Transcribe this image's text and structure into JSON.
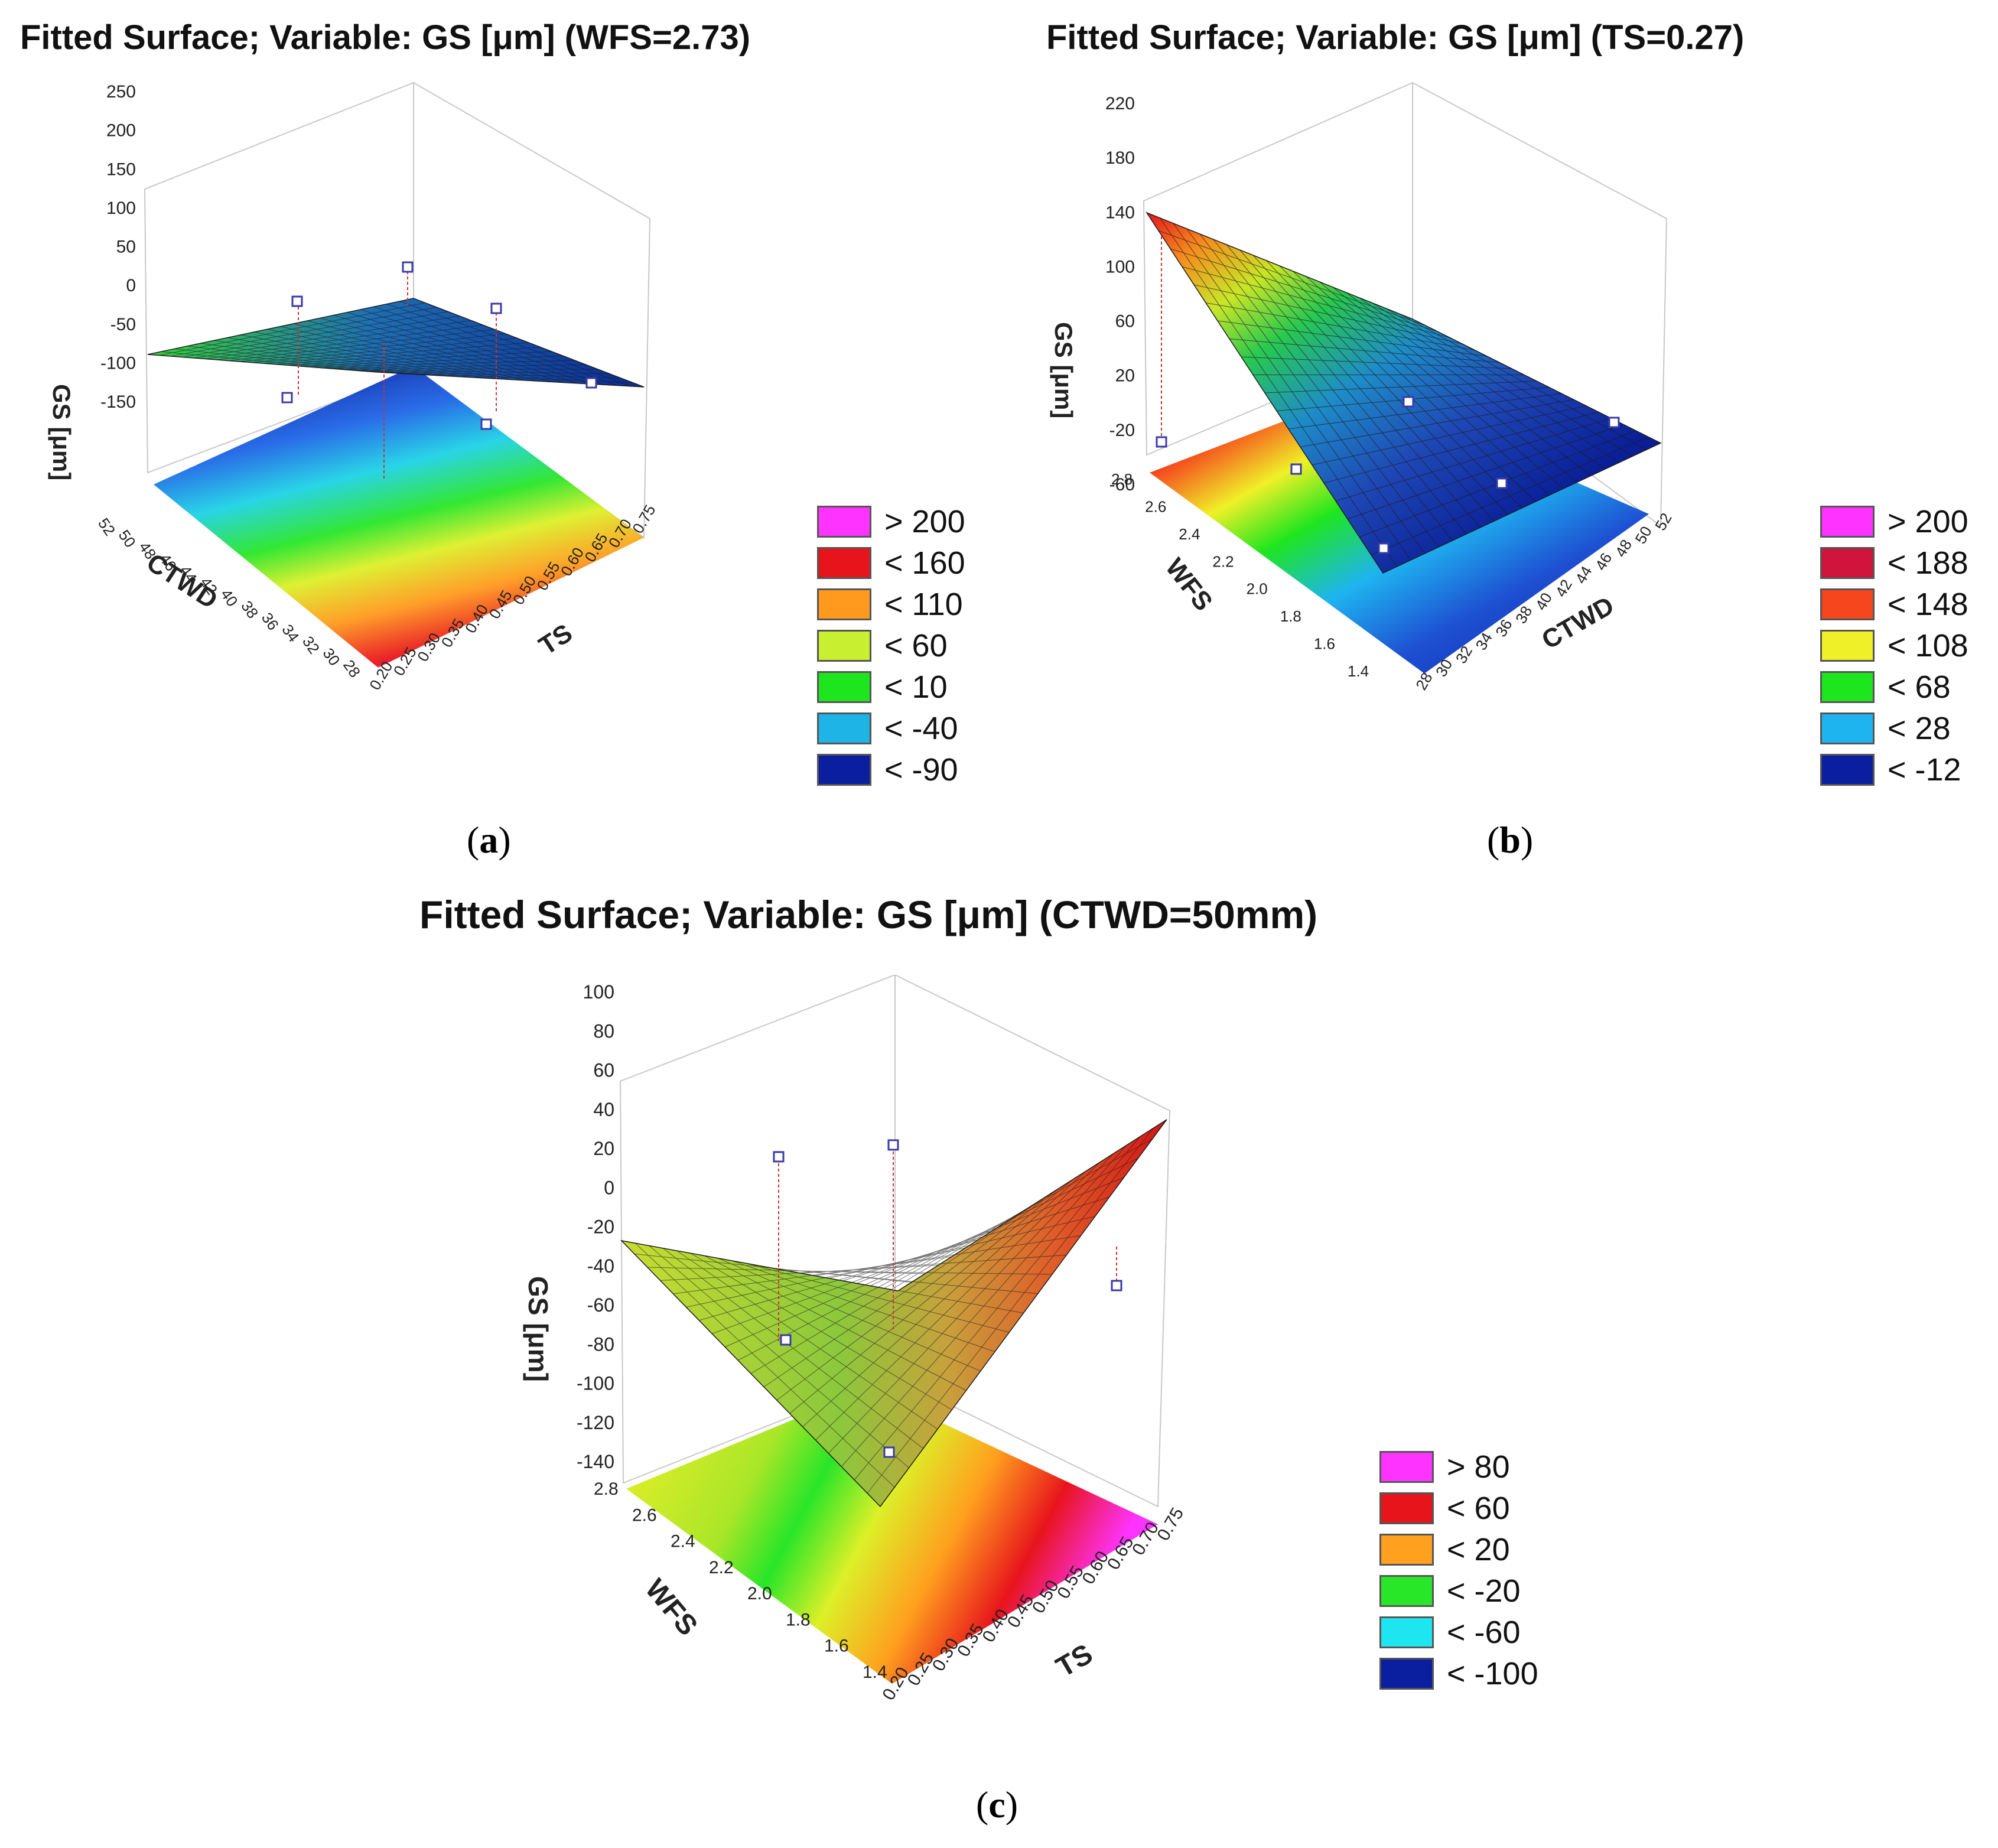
{
  "chart_data": [
    {
      "id": "a",
      "type": "surface3d",
      "title": "Fitted Surface; Variable: GS [μm] (WFS=2.73)",
      "zlabel": "GS [μm]",
      "xlabel": "CTWD",
      "ylabel": "TS",
      "x_ticks": [
        "52",
        "50",
        "48",
        "46",
        "44",
        "42",
        "40",
        "38",
        "36",
        "34",
        "32",
        "30",
        "28"
      ],
      "y_ticks": [
        "0.20",
        "0.25",
        "0.30",
        "0.35",
        "0.40",
        "0.45",
        "0.50",
        "0.55",
        "0.60",
        "0.65",
        "0.70",
        "0.75"
      ],
      "z_ticks": [
        "250",
        "200",
        "150",
        "100",
        "50",
        "0",
        "-50",
        "-100",
        "-150"
      ],
      "zlim": [
        -150,
        250
      ],
      "legend": [
        {
          "label": "> 200",
          "color": "#ff33ff"
        },
        {
          "label": "< 160",
          "color": "#e8141c"
        },
        {
          "label": "< 110",
          "color": "#ff9a1e"
        },
        {
          "label": "< 60",
          "color": "#c8f030"
        },
        {
          "label": "< 10",
          "color": "#1ee61e"
        },
        {
          "label": "< -40",
          "color": "#1eb4e6"
        },
        {
          "label": "< -90",
          "color": "#0a1ea0"
        }
      ],
      "sublabel": "a"
    },
    {
      "id": "b",
      "type": "surface3d",
      "title": "Fitted Surface; Variable: GS [μm] (TS=0.27)",
      "zlabel": "GS [μm]",
      "xlabel": "WFS",
      "ylabel": "CTWD",
      "x_ticks": [
        "2.8",
        "2.6",
        "2.4",
        "2.2",
        "2.0",
        "1.8",
        "1.6",
        "1.4"
      ],
      "y_ticks": [
        "28",
        "30",
        "32",
        "34",
        "36",
        "38",
        "40",
        "42",
        "44",
        "46",
        "48",
        "50",
        "52"
      ],
      "z_ticks": [
        "220",
        "180",
        "140",
        "100",
        "60",
        "20",
        "-20",
        "-60"
      ],
      "zlim": [
        -60,
        220
      ],
      "legend": [
        {
          "label": "> 200",
          "color": "#ff33ff"
        },
        {
          "label": "< 188",
          "color": "#d0143c"
        },
        {
          "label": "< 148",
          "color": "#f5461e"
        },
        {
          "label": "< 108",
          "color": "#f0f028"
        },
        {
          "label": "< 68",
          "color": "#1ee61e"
        },
        {
          "label": "< 28",
          "color": "#1eb4f0"
        },
        {
          "label": "< -12",
          "color": "#0a1ea0"
        }
      ],
      "sublabel": "b"
    },
    {
      "id": "c",
      "type": "surface3d",
      "title": "Fitted Surface; Variable: GS [μm] (CTWD=50mm)",
      "zlabel": "GS [μm]",
      "xlabel": "WFS",
      "ylabel": "TS",
      "x_ticks": [
        "2.8",
        "2.6",
        "2.4",
        "2.2",
        "2.0",
        "1.8",
        "1.6",
        "1.4"
      ],
      "y_ticks": [
        "0.20",
        "0.25",
        "0.30",
        "0.35",
        "0.40",
        "0.45",
        "0.50",
        "0.55",
        "0.60",
        "0.65",
        "0.70",
        "0.75"
      ],
      "z_ticks": [
        "100",
        "80",
        "60",
        "40",
        "20",
        "0",
        "-20",
        "-40",
        "-60",
        "-80",
        "-100",
        "-120",
        "-140"
      ],
      "zlim": [
        -140,
        100
      ],
      "legend": [
        {
          "label": "> 80",
          "color": "#ff33ff"
        },
        {
          "label": "< 60",
          "color": "#e8141c"
        },
        {
          "label": "< 20",
          "color": "#ffa01e"
        },
        {
          "label": "< -20",
          "color": "#28e628"
        },
        {
          "label": "< -60",
          "color": "#1ee6f0"
        },
        {
          "label": "< -100",
          "color": "#0a1ea0"
        }
      ],
      "sublabel": "c"
    }
  ]
}
